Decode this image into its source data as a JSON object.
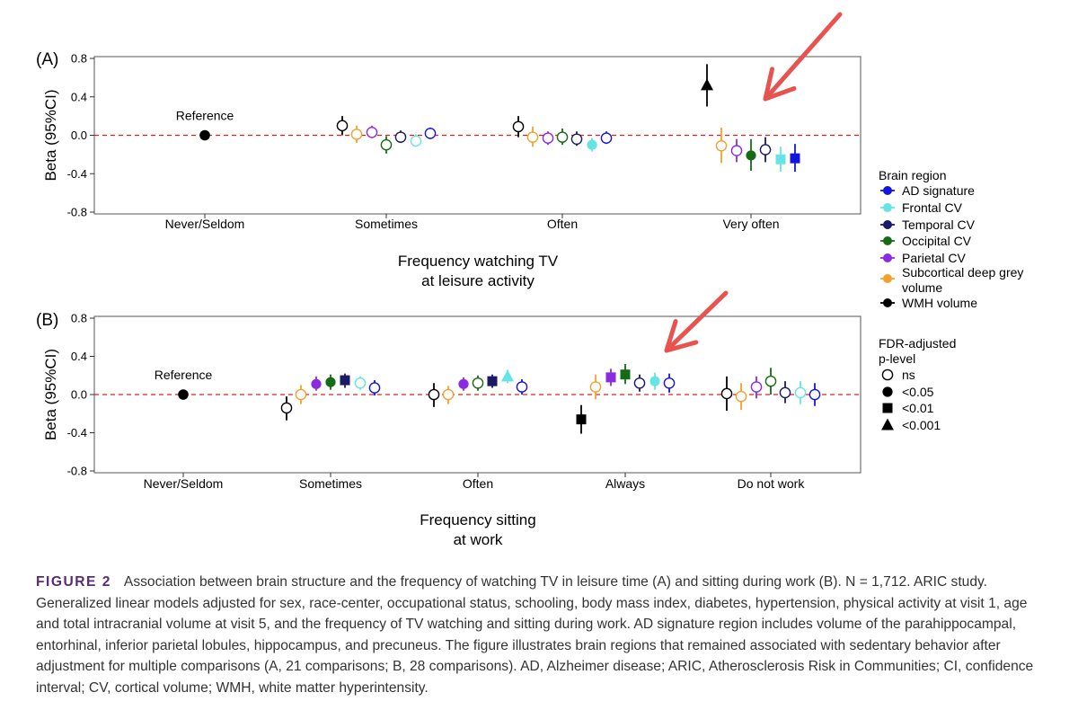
{
  "chart_data": [
    {
      "type": "scatter",
      "panel_label": "(A)",
      "ylabel": "Beta (95%CI)",
      "ylim": [
        -0.8,
        0.8
      ],
      "yticks": [
        "0.8",
        "0.4",
        "0.0",
        "-0.4",
        "-0.8"
      ],
      "categories": [
        "Never/Seldom",
        "Sometimes",
        "Often",
        "Very often"
      ],
      "xtitle_lines": [
        "Frequency watching TV",
        "at leisure activity"
      ],
      "reference": {
        "category": "Never/Seldom",
        "label": "Reference",
        "value": 0
      },
      "reference_line": 0,
      "series": [
        {
          "name": "WMH volume",
          "color": "#000000",
          "points": [
            {
              "category": "Sometimes",
              "y": 0.1,
              "lo": 0.0,
              "hi": 0.2,
              "p": "ns"
            },
            {
              "category": "Often",
              "y": 0.09,
              "lo": -0.02,
              "hi": 0.2,
              "p": "ns"
            },
            {
              "category": "Very often",
              "y": 0.52,
              "lo": 0.3,
              "hi": 0.74,
              "p": "<0.001"
            }
          ]
        },
        {
          "name": "Subcortical deep grey volume",
          "color": "#f5a02c",
          "points": [
            {
              "category": "Sometimes",
              "y": 0.01,
              "lo": -0.08,
              "hi": 0.1,
              "p": "ns"
            },
            {
              "category": "Often",
              "y": -0.02,
              "lo": -0.12,
              "hi": 0.09,
              "p": "ns"
            },
            {
              "category": "Very often",
              "y": -0.11,
              "lo": -0.29,
              "hi": 0.08,
              "p": "ns"
            }
          ]
        },
        {
          "name": "Parietal CV",
          "color": "#8a2be2",
          "points": [
            {
              "category": "Sometimes",
              "y": 0.03,
              "lo": -0.03,
              "hi": 0.1,
              "p": "ns"
            },
            {
              "category": "Often",
              "y": -0.03,
              "lo": -0.1,
              "hi": 0.04,
              "p": "ns"
            },
            {
              "category": "Very often",
              "y": -0.16,
              "lo": -0.28,
              "hi": -0.04,
              "p": "ns"
            }
          ]
        },
        {
          "name": "Occipital CV",
          "color": "#176b17",
          "points": [
            {
              "category": "Sometimes",
              "y": -0.1,
              "lo": -0.19,
              "hi": -0.01,
              "p": "ns"
            },
            {
              "category": "Often",
              "y": -0.02,
              "lo": -0.1,
              "hi": 0.07,
              "p": "ns"
            },
            {
              "category": "Very often",
              "y": -0.21,
              "lo": -0.37,
              "hi": -0.04,
              "p": "<0.05"
            }
          ]
        },
        {
          "name": "Temporal CV",
          "color": "#1a1a66",
          "points": [
            {
              "category": "Sometimes",
              "y": -0.02,
              "lo": -0.08,
              "hi": 0.05,
              "p": "ns"
            },
            {
              "category": "Often",
              "y": -0.04,
              "lo": -0.11,
              "hi": 0.04,
              "p": "ns"
            },
            {
              "category": "Very often",
              "y": -0.15,
              "lo": -0.28,
              "hi": -0.02,
              "p": "ns"
            }
          ]
        },
        {
          "name": "Frontal CV",
          "color": "#66e3e3",
          "points": [
            {
              "category": "Sometimes",
              "y": -0.06,
              "lo": -0.12,
              "hi": 0.01,
              "p": "ns"
            },
            {
              "category": "Often",
              "y": -0.1,
              "lo": -0.17,
              "hi": -0.03,
              "p": "<0.05"
            },
            {
              "category": "Very often",
              "y": -0.25,
              "lo": -0.38,
              "hi": -0.12,
              "p": "<0.01"
            }
          ]
        },
        {
          "name": "AD signature",
          "color": "#1414e0",
          "points": [
            {
              "category": "Sometimes",
              "y": 0.02,
              "lo": -0.04,
              "hi": 0.08,
              "p": "ns"
            },
            {
              "category": "Often",
              "y": -0.03,
              "lo": -0.09,
              "hi": 0.04,
              "p": "ns"
            },
            {
              "category": "Very often",
              "y": -0.24,
              "lo": -0.38,
              "hi": -0.09,
              "p": "<0.01"
            }
          ]
        }
      ]
    },
    {
      "type": "scatter",
      "panel_label": "(B)",
      "ylabel": "Beta (95%CI)",
      "ylim": [
        -0.8,
        0.8
      ],
      "yticks": [
        "0.8",
        "0.4",
        "0.0",
        "-0.4",
        "-0.8"
      ],
      "categories": [
        "Never/Seldom",
        "Sometimes",
        "Often",
        "Always",
        "Do not work"
      ],
      "xtitle_lines": [
        "Frequency sitting",
        "at work"
      ],
      "reference": {
        "category": "Never/Seldom",
        "label": "Reference",
        "value": 0
      },
      "reference_line": 0,
      "series": [
        {
          "name": "WMH volume",
          "color": "#000000",
          "points": [
            {
              "category": "Sometimes",
              "y": -0.14,
              "lo": -0.27,
              "hi": -0.02,
              "p": "ns"
            },
            {
              "category": "Often",
              "y": 0.0,
              "lo": -0.13,
              "hi": 0.12,
              "p": "ns"
            },
            {
              "category": "Always",
              "y": -0.26,
              "lo": -0.41,
              "hi": -0.11,
              "p": "<0.01"
            },
            {
              "category": "Do not work",
              "y": 0.01,
              "lo": -0.17,
              "hi": 0.19,
              "p": "ns"
            }
          ]
        },
        {
          "name": "Subcortical deep grey volume",
          "color": "#f5a02c",
          "points": [
            {
              "category": "Sometimes",
              "y": 0.0,
              "lo": -0.1,
              "hi": 0.1,
              "p": "ns"
            },
            {
              "category": "Often",
              "y": 0.0,
              "lo": -0.1,
              "hi": 0.09,
              "p": "ns"
            },
            {
              "category": "Always",
              "y": 0.08,
              "lo": -0.05,
              "hi": 0.21,
              "p": "ns"
            },
            {
              "category": "Do not work",
              "y": -0.02,
              "lo": -0.16,
              "hi": 0.12,
              "p": "ns"
            }
          ]
        },
        {
          "name": "Parietal CV",
          "color": "#8a2be2",
          "points": [
            {
              "category": "Sometimes",
              "y": 0.11,
              "lo": 0.04,
              "hi": 0.19,
              "p": "<0.05"
            },
            {
              "category": "Often",
              "y": 0.11,
              "lo": 0.04,
              "hi": 0.18,
              "p": "<0.05"
            },
            {
              "category": "Always",
              "y": 0.18,
              "lo": 0.09,
              "hi": 0.27,
              "p": "<0.01"
            },
            {
              "category": "Do not work",
              "y": 0.08,
              "lo": -0.04,
              "hi": 0.19,
              "p": "ns"
            }
          ]
        },
        {
          "name": "Occipital CV",
          "color": "#176b17",
          "points": [
            {
              "category": "Sometimes",
              "y": 0.13,
              "lo": 0.05,
              "hi": 0.21,
              "p": "<0.05"
            },
            {
              "category": "Often",
              "y": 0.12,
              "lo": 0.04,
              "hi": 0.2,
              "p": "ns"
            },
            {
              "category": "Always",
              "y": 0.21,
              "lo": 0.11,
              "hi": 0.32,
              "p": "<0.01"
            },
            {
              "category": "Do not work",
              "y": 0.14,
              "lo": 0.0,
              "hi": 0.28,
              "p": "ns"
            }
          ]
        },
        {
          "name": "Temporal CV",
          "color": "#1a1a66",
          "points": [
            {
              "category": "Sometimes",
              "y": 0.15,
              "lo": 0.07,
              "hi": 0.22,
              "p": "<0.01"
            },
            {
              "category": "Often",
              "y": 0.14,
              "lo": 0.07,
              "hi": 0.21,
              "p": "<0.01"
            },
            {
              "category": "Always",
              "y": 0.12,
              "lo": 0.03,
              "hi": 0.21,
              "p": "ns"
            },
            {
              "category": "Do not work",
              "y": 0.02,
              "lo": -0.09,
              "hi": 0.14,
              "p": "ns"
            }
          ]
        },
        {
          "name": "Frontal CV",
          "color": "#66e3e3",
          "points": [
            {
              "category": "Sometimes",
              "y": 0.12,
              "lo": 0.05,
              "hi": 0.19,
              "p": "ns"
            },
            {
              "category": "Often",
              "y": 0.19,
              "lo": 0.12,
              "hi": 0.26,
              "p": "<0.001"
            },
            {
              "category": "Always",
              "y": 0.14,
              "lo": 0.05,
              "hi": 0.23,
              "p": "<0.05"
            },
            {
              "category": "Do not work",
              "y": 0.02,
              "lo": -0.1,
              "hi": 0.14,
              "p": "ns"
            }
          ]
        },
        {
          "name": "AD signature",
          "color": "#1414e0",
          "points": [
            {
              "category": "Sometimes",
              "y": 0.07,
              "lo": -0.01,
              "hi": 0.15,
              "p": "ns"
            },
            {
              "category": "Often",
              "y": 0.08,
              "lo": 0.0,
              "hi": 0.16,
              "p": "ns"
            },
            {
              "category": "Always",
              "y": 0.12,
              "lo": 0.02,
              "hi": 0.22,
              "p": "ns"
            },
            {
              "category": "Do not work",
              "y": 0.0,
              "lo": -0.12,
              "hi": 0.12,
              "p": "ns"
            }
          ]
        }
      ]
    }
  ],
  "legend": {
    "region_title": "Brain region",
    "regions": [
      {
        "name": "AD signature",
        "color": "#1414e0"
      },
      {
        "name": "Frontal CV",
        "color": "#66e3e3"
      },
      {
        "name": "Temporal CV",
        "color": "#1a1a66"
      },
      {
        "name": "Occipital CV",
        "color": "#176b17"
      },
      {
        "name": "Parietal CV",
        "color": "#8a2be2"
      },
      {
        "name": "Subcortical deep grey volume",
        "color": "#f5a02c"
      },
      {
        "name": "WMH volume",
        "color": "#000000"
      }
    ],
    "p_title_lines": [
      "FDR-adjusted",
      "p-level"
    ],
    "p_levels": [
      {
        "label": "ns",
        "symbol": "open-circle"
      },
      {
        "label": "<0.05",
        "symbol": "filled-circle"
      },
      {
        "label": "<0.01",
        "symbol": "filled-square"
      },
      {
        "label": "<0.001",
        "symbol": "filled-triangle"
      }
    ]
  },
  "annotation_arrows": {
    "color": "#e8534f"
  },
  "caption": {
    "label": "FIGURE 2",
    "text": "Association between brain structure and the frequency of watching TV in leisure time (A) and sitting during work (B). N = 1,712. ARIC study. Generalized linear models adjusted for sex, race-center, occupational status, schooling, body mass index, diabetes, hypertension, physical activity at visit 1, age and total intracranial volume at visit 5, and the frequency of TV watching and sitting during work. AD signature region includes volume of the parahippocampal, entorhinal, inferior parietal lobules, hippocampus, and precuneus. The figure illustrates brain regions that remained associated with sedentary behavior after adjustment for multiple comparisons (A, 21 comparisons; B, 28 comparisons). AD, Alzheimer disease; ARIC, Atherosclerosis Risk in Communities; CI, confidence interval; CV, cortical volume; WMH, white matter hyperintensity."
  }
}
